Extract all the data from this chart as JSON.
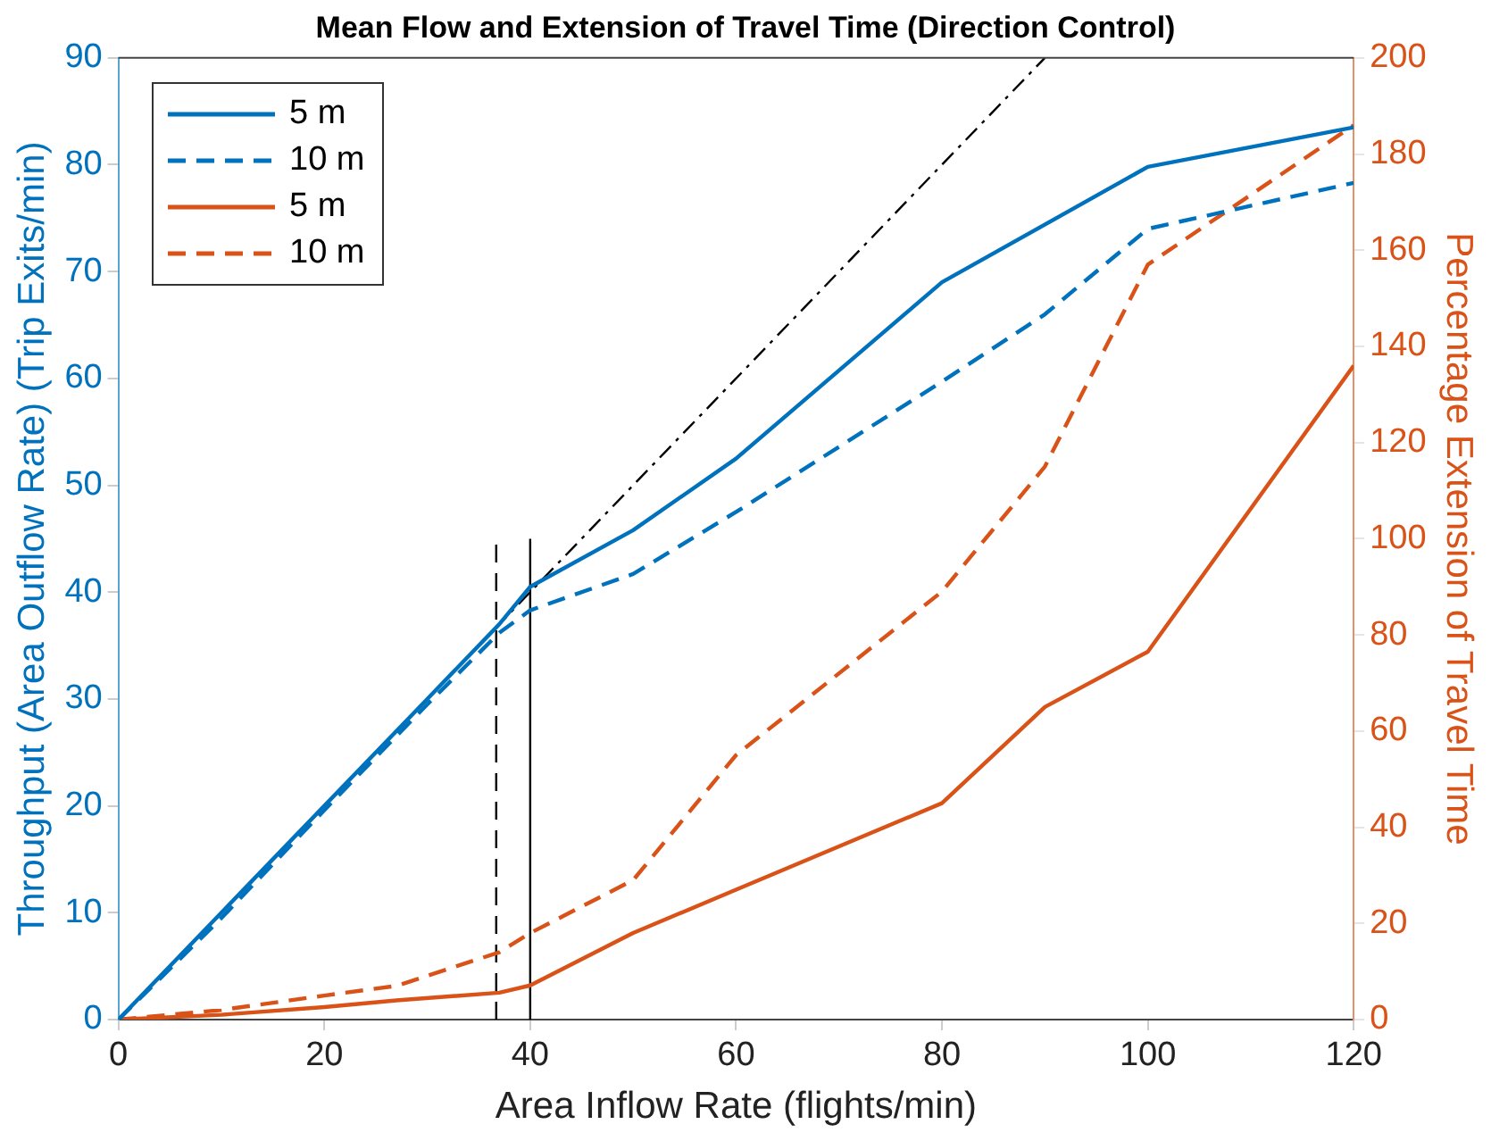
{
  "chart_data": {
    "type": "line",
    "title": "Mean Flow and Extension of Travel Time (Direction Control)",
    "xlabel": "Area Inflow Rate (flights/min)",
    "ylabel": "Throughput (Area Outflow Rate) (Trip Exits/min)",
    "y2label": "Percentage Extension of Travel Time",
    "xlim": [
      0,
      120
    ],
    "xticks": [
      0,
      20,
      40,
      60,
      80,
      100,
      120
    ],
    "ylim": [
      0,
      90
    ],
    "yticks": [
      0,
      10,
      20,
      30,
      40,
      50,
      60,
      70,
      80,
      90
    ],
    "y2lim": [
      0,
      200
    ],
    "y2ticks": [
      0,
      20,
      40,
      60,
      80,
      100,
      120,
      140,
      160,
      180,
      200
    ],
    "legend": "top left",
    "grid": false,
    "marker": "none",
    "series": [
      {
        "name": "5 m",
        "color": "#0072bd",
        "line_style": "solid",
        "x": [
          0,
          10,
          20,
          30,
          37,
          40,
          50,
          60,
          80,
          100,
          120
        ],
        "values": [
          0,
          10,
          20,
          30,
          37,
          40.5,
          45.8,
          52.5,
          69,
          79.8,
          83.5
        ]
      },
      {
        "name": "10 m",
        "color": "#0072bd",
        "line_style": "dashed",
        "x": [
          0,
          10,
          20,
          30,
          37,
          40,
          50,
          60,
          80,
          90,
          100,
          120
        ],
        "values": [
          0,
          9.5,
          19.6,
          29.5,
          36.2,
          38.3,
          41.7,
          47.5,
          59.7,
          66,
          74,
          78.3
        ]
      },
      {
        "name": "5 m",
        "color": "#d95319",
        "line_style": "solid",
        "axis": "y2",
        "x": [
          0,
          10,
          20,
          27,
          37,
          40,
          50,
          60,
          80,
          90,
          100,
          120
        ],
        "values": [
          0,
          1,
          2.6,
          4,
          5.6,
          7.1,
          18,
          27,
          45,
          65,
          76.5,
          136
        ]
      },
      {
        "name": "10 m",
        "color": "#d95319",
        "line_style": "dashed",
        "axis": "y2",
        "x": [
          0,
          10,
          20,
          27,
          37,
          40,
          50,
          60,
          80,
          90,
          100,
          120
        ],
        "values": [
          0,
          2,
          5,
          7,
          14,
          18,
          29,
          55,
          89,
          115,
          157,
          186
        ]
      },
      {
        "color": "#000000",
        "line_style": "dashdot",
        "x": [
          0,
          90
        ],
        "values": [
          0,
          90
        ]
      },
      {
        "color": "#000000",
        "line_style": "solid",
        "x": [
          40,
          40
        ],
        "values": [
          0,
          45
        ]
      },
      {
        "color": "#000000",
        "line_style": "dashed",
        "x": [
          36.7,
          36.7
        ],
        "values": [
          0,
          45
        ]
      }
    ]
  }
}
